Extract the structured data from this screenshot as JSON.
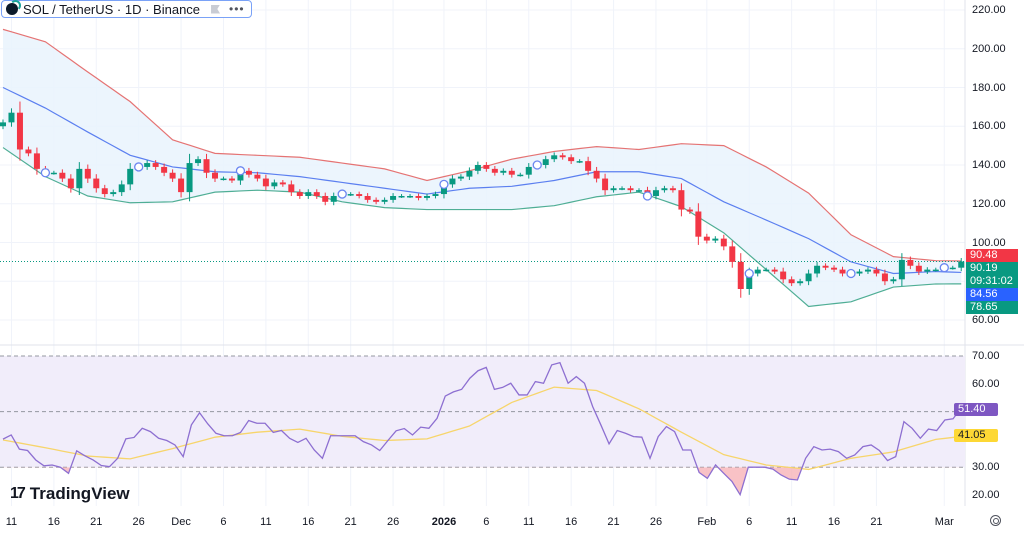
{
  "header": {
    "symbol_title": "SOL / TetherUS · 1D · Binance",
    "more_label": "•••"
  },
  "branding": {
    "logo_text": "TradingView",
    "logo_mark": "17"
  },
  "colors": {
    "up": "#089981",
    "down": "#f23645",
    "bb_upper": "#e57373",
    "bb_basis": "#5b7ff0",
    "bb_lower": "#4fae95",
    "bb_fill": "#e9f3fd",
    "rsi": "#8d6fd1",
    "rsi_ma": "#f7d56b",
    "rsi_bg": "#f1edfa",
    "marker": "#6b86f0"
  },
  "price_axis": {
    "labels": [
      "220.00",
      "200.00",
      "180.00",
      "160.00",
      "140.00",
      "120.00",
      "100.00",
      "60.00"
    ]
  },
  "price_tags": {
    "bb_upper": "90.48",
    "last_price": "90.19",
    "countdown": "09:31:02",
    "bb_basis": "84.56",
    "bb_lower": "78.65"
  },
  "rsi_axis": {
    "labels": [
      "70.00",
      "60.00",
      "30.00",
      "20.00"
    ]
  },
  "rsi_tags": {
    "rsi": "51.40",
    "rsi_ma": "41.05"
  },
  "x_axis": {
    "ticks": [
      {
        "label": "11",
        "date": "2025-11-11"
      },
      {
        "label": "16",
        "date": "2025-11-16"
      },
      {
        "label": "21",
        "date": "2025-11-21"
      },
      {
        "label": "26",
        "date": "2025-11-26"
      },
      {
        "label": "Dec",
        "date": "2025-12-01"
      },
      {
        "label": "6",
        "date": "2025-12-06"
      },
      {
        "label": "11",
        "date": "2025-12-11"
      },
      {
        "label": "16",
        "date": "2025-12-16"
      },
      {
        "label": "21",
        "date": "2025-12-21"
      },
      {
        "label": "26",
        "date": "2025-12-26"
      },
      {
        "label": "2026",
        "date": "2026-01-01",
        "bold": true
      },
      {
        "label": "6",
        "date": "2026-01-06"
      },
      {
        "label": "11",
        "date": "2026-01-11"
      },
      {
        "label": "16",
        "date": "2026-01-16"
      },
      {
        "label": "21",
        "date": "2026-01-21"
      },
      {
        "label": "26",
        "date": "2026-01-26"
      },
      {
        "label": "Feb",
        "date": "2026-02-01"
      },
      {
        "label": "6",
        "date": "2026-02-06"
      },
      {
        "label": "11",
        "date": "2026-02-11"
      },
      {
        "label": "16",
        "date": "2026-02-16"
      },
      {
        "label": "21",
        "date": "2026-02-21"
      },
      {
        "label": "Mar",
        "date": "2026-03-01"
      }
    ]
  },
  "chart_data": [
    {
      "type": "candlestick",
      "title": "SOL / TetherUS · 1D · Binance",
      "start_date": "2025-11-10",
      "first_open": 160,
      "closes": [
        162,
        167,
        148,
        146,
        138,
        136,
        136,
        133,
        128,
        138,
        133,
        128,
        125,
        126,
        130,
        138,
        139,
        141,
        139,
        136,
        133,
        126,
        141,
        143,
        136,
        133,
        133,
        132,
        137,
        135,
        133,
        129,
        131,
        130,
        126,
        124,
        126,
        124,
        121,
        124,
        125,
        125,
        124,
        122,
        121,
        122,
        124,
        124,
        124,
        123,
        124,
        125,
        130,
        133,
        134,
        137,
        140,
        138,
        136,
        137,
        135,
        135,
        139,
        140,
        143,
        145,
        144,
        142,
        142,
        137,
        133,
        127,
        128,
        128,
        127,
        127,
        124,
        127,
        128,
        127,
        117,
        116,
        103,
        101,
        102,
        98,
        90,
        76,
        84,
        86,
        86,
        85,
        81,
        79,
        80,
        84,
        88,
        87,
        86,
        84,
        84,
        85,
        86,
        84,
        80,
        81,
        91,
        88,
        85,
        86,
        86,
        87,
        87,
        90.19
      ],
      "ylim": [
        60,
        220
      ],
      "last_price": 90.19,
      "markers": [
        "2025-11-15",
        "2025-11-26",
        "2025-12-08",
        "2025-12-20",
        "2026-01-01",
        "2026-01-12",
        "2026-01-25",
        "2026-02-06",
        "2026-02-18",
        "2026-03-01"
      ],
      "bollinger": [
        {
          "date": "2025-11-10",
          "upper": 210,
          "basis": 180,
          "lower": 149
        },
        {
          "date": "2025-11-15",
          "upper": 203.6,
          "basis": 169.4,
          "lower": 134
        },
        {
          "date": "2025-11-20",
          "upper": 188,
          "basis": 157,
          "lower": 124
        },
        {
          "date": "2025-11-25",
          "upper": 172.7,
          "basis": 145,
          "lower": 120.5
        },
        {
          "date": "2025-11-30",
          "upper": 153,
          "basis": 139,
          "lower": 121
        },
        {
          "date": "2025-12-05",
          "upper": 146,
          "basis": 136.5,
          "lower": 126
        },
        {
          "date": "2025-12-10",
          "upper": 145,
          "basis": 136,
          "lower": 127
        },
        {
          "date": "2025-12-15",
          "upper": 144,
          "basis": 134,
          "lower": 126
        },
        {
          "date": "2025-12-20",
          "upper": 141,
          "basis": 131,
          "lower": 121
        },
        {
          "date": "2025-12-25",
          "upper": 138,
          "basis": 128,
          "lower": 118
        },
        {
          "date": "2025-12-30",
          "upper": 132,
          "basis": 125,
          "lower": 117
        },
        {
          "date": "2026-01-04",
          "upper": 137,
          "basis": 128,
          "lower": 117
        },
        {
          "date": "2026-01-09",
          "upper": 143,
          "basis": 129,
          "lower": 117
        },
        {
          "date": "2026-01-14",
          "upper": 147,
          "basis": 132,
          "lower": 119
        },
        {
          "date": "2026-01-19",
          "upper": 149.5,
          "basis": 136.5,
          "lower": 123.6
        },
        {
          "date": "2026-01-24",
          "upper": 148,
          "basis": 136.5,
          "lower": 126
        },
        {
          "date": "2026-01-29",
          "upper": 151,
          "basis": 133,
          "lower": 118.5
        },
        {
          "date": "2026-02-03",
          "upper": 150,
          "basis": 121,
          "lower": 105
        },
        {
          "date": "2026-02-08",
          "upper": 139,
          "basis": 111.6,
          "lower": 86
        },
        {
          "date": "2026-02-13",
          "upper": 125.5,
          "basis": 102,
          "lower": 67
        },
        {
          "date": "2026-02-18",
          "upper": 104,
          "basis": 90,
          "lower": 69.4
        },
        {
          "date": "2026-02-23",
          "upper": 92.7,
          "basis": 84,
          "lower": 77
        },
        {
          "date": "2026-02-28",
          "upper": 90.6,
          "basis": 85,
          "lower": 78.6
        },
        {
          "date": "2026-03-03",
          "upper": 90.48,
          "basis": 84.56,
          "lower": 78.65
        }
      ]
    },
    {
      "type": "line",
      "ylim": [
        15,
        72
      ],
      "levels": [
        70,
        50,
        30
      ],
      "rsi": [
        40.1,
        41.6,
        36.5,
        36.0,
        32.6,
        30.5,
        30.8,
        30.0,
        27.8,
        35.9,
        34.1,
        32.6,
        30.6,
        30.2,
        33.2,
        40.2,
        40.7,
        44.0,
        42.8,
        40.4,
        39.6,
        38.0,
        33.8,
        45.2,
        49.6,
        45.6,
        42.2,
        41.3,
        41.3,
        42.5,
        46.8,
        45.8,
        45.8,
        42.5,
        43.2,
        40.4,
        38.9,
        40.4,
        36.2,
        33.2,
        41.3,
        41.3,
        41.3,
        41.3,
        39.2,
        38.0,
        36.0,
        39.6,
        43.1,
        43.9,
        41.6,
        44.4,
        44.0,
        47.6,
        55.6,
        57.1,
        58.0,
        62.0,
        64.7,
        65.9,
        58.0,
        58.7,
        60.2,
        56.0,
        56.0,
        60.8,
        60.2,
        66.8,
        67.6,
        60.2,
        62.6,
        60.2,
        51.8,
        45.2,
        38.4,
        43.2,
        42.2,
        41.0,
        40.8,
        33.2,
        41.0,
        44.6,
        42.8,
        36.2,
        36.2,
        28.1,
        26.0,
        30.8,
        27.8,
        24.9,
        20.1,
        30.0,
        30.0,
        30.0,
        29.3,
        27.2,
        25.7,
        25.4,
        33.2,
        37.4,
        36.2,
        36.5,
        35.6,
        33.2,
        34.4,
        37.4,
        38.0,
        36.0,
        32.4,
        33.8,
        46.4,
        44.0,
        40.4,
        43.7,
        43.2,
        47.0,
        47.4,
        51.4
      ],
      "rsi_ma": [
        {
          "date": "2025-11-10",
          "value": 39.8
        },
        {
          "date": "2025-11-15",
          "value": 37
        },
        {
          "date": "2025-11-20",
          "value": 34
        },
        {
          "date": "2025-11-25",
          "value": 33
        },
        {
          "date": "2025-11-30",
          "value": 36.7
        },
        {
          "date": "2025-12-05",
          "value": 40.8
        },
        {
          "date": "2025-12-10",
          "value": 42.6
        },
        {
          "date": "2025-12-15",
          "value": 43.7
        },
        {
          "date": "2025-12-20",
          "value": 41.1
        },
        {
          "date": "2025-12-25",
          "value": 39.6
        },
        {
          "date": "2025-12-30",
          "value": 40.2
        },
        {
          "date": "2026-01-04",
          "value": 44.8
        },
        {
          "date": "2026-01-09",
          "value": 53.3
        },
        {
          "date": "2026-01-14",
          "value": 58.8
        },
        {
          "date": "2026-01-19",
          "value": 57.6
        },
        {
          "date": "2026-01-24",
          "value": 51
        },
        {
          "date": "2026-01-29",
          "value": 42.6
        },
        {
          "date": "2026-02-03",
          "value": 34.5
        },
        {
          "date": "2026-02-08",
          "value": 30.8
        },
        {
          "date": "2026-02-13",
          "value": 29.2
        },
        {
          "date": "2026-02-18",
          "value": 33.2
        },
        {
          "date": "2026-02-23",
          "value": 35.5
        },
        {
          "date": "2026-02-28",
          "value": 40
        },
        {
          "date": "2026-03-03",
          "value": 41.05
        }
      ]
    }
  ]
}
